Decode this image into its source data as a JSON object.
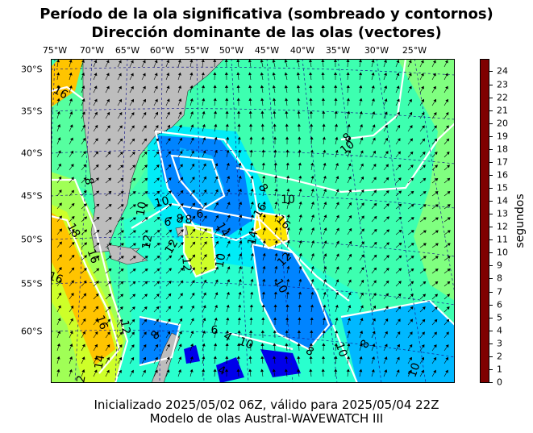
{
  "title": {
    "line1": "Período de la ola significativa (sombreado y contornos)",
    "line2": "Dirección dominante de las olas (vectores)"
  },
  "lon_labels": [
    "75°W",
    "70°W",
    "65°W",
    "60°W",
    "55°W",
    "50°W",
    "45°W",
    "40°W",
    "35°W",
    "30°W",
    "25°W"
  ],
  "lat_labels": [
    "30°S",
    "35°S",
    "40°S",
    "45°S",
    "50°S",
    "55°S",
    "60°S"
  ],
  "contour_labels": [
    "16",
    "18",
    "16",
    "16",
    "16",
    "12",
    "12",
    "10",
    "8",
    "10",
    "8",
    "8",
    "6",
    "6",
    "14",
    "10",
    "12",
    "14",
    "16",
    "16",
    "10",
    "8",
    "10",
    "12",
    "10",
    "8",
    "8",
    "6",
    "4",
    "10",
    "4",
    "8",
    "10",
    "8",
    "10",
    "14",
    "2",
    "12"
  ],
  "colorbar": {
    "ticks": [
      "0",
      "1",
      "2",
      "3",
      "4",
      "5",
      "6",
      "7",
      "8",
      "9",
      "10",
      "11",
      "12",
      "13",
      "14",
      "15",
      "16",
      "17",
      "18",
      "19",
      "20",
      "21",
      "22",
      "23",
      "24"
    ],
    "label": "segundos",
    "colors": [
      "#00007f",
      "#0000b3",
      "#0000ea",
      "#001cff",
      "#0050ff",
      "#0084ff",
      "#00b8ff",
      "#00ecf7",
      "#29ffce",
      "#56ffa0",
      "#80ff80",
      "#a0ff56",
      "#ceff29",
      "#f7f400",
      "#ffc400",
      "#ff9400",
      "#ff6400",
      "#ff3400",
      "#ea0000",
      "#b30000",
      "#7f0000"
    ]
  },
  "colors": {
    "land": "#bdbdbd",
    "contour": "#ffffff",
    "grid": "#1a1a8c"
  },
  "footer": {
    "line1": "Inicializado 2025/05/02 06Z, válido para 2025/05/04 22Z",
    "line2": "Modelo de olas Austral-WAVEWATCH III"
  }
}
